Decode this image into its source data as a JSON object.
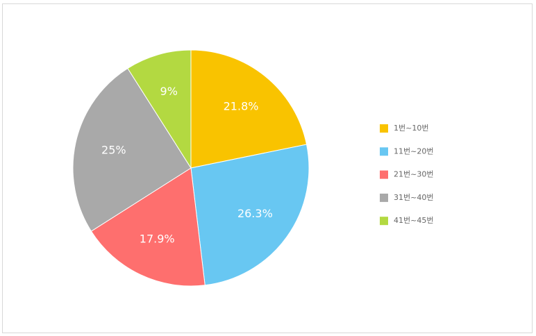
{
  "chart_data": {
    "type": "pie",
    "categories": [
      "1번~10번",
      "11번~20번",
      "21번~30번",
      "31번~40번",
      "41번~45번"
    ],
    "values": [
      21.8,
      26.3,
      17.9,
      25,
      9
    ],
    "value_labels": [
      "21.8%",
      "26.3%",
      "17.9%",
      "25%",
      "9%"
    ],
    "colors": [
      "#f9c300",
      "#68c7f2",
      "#fe6f6e",
      "#a9a9a9",
      "#b3d941"
    ],
    "legend": "right"
  }
}
